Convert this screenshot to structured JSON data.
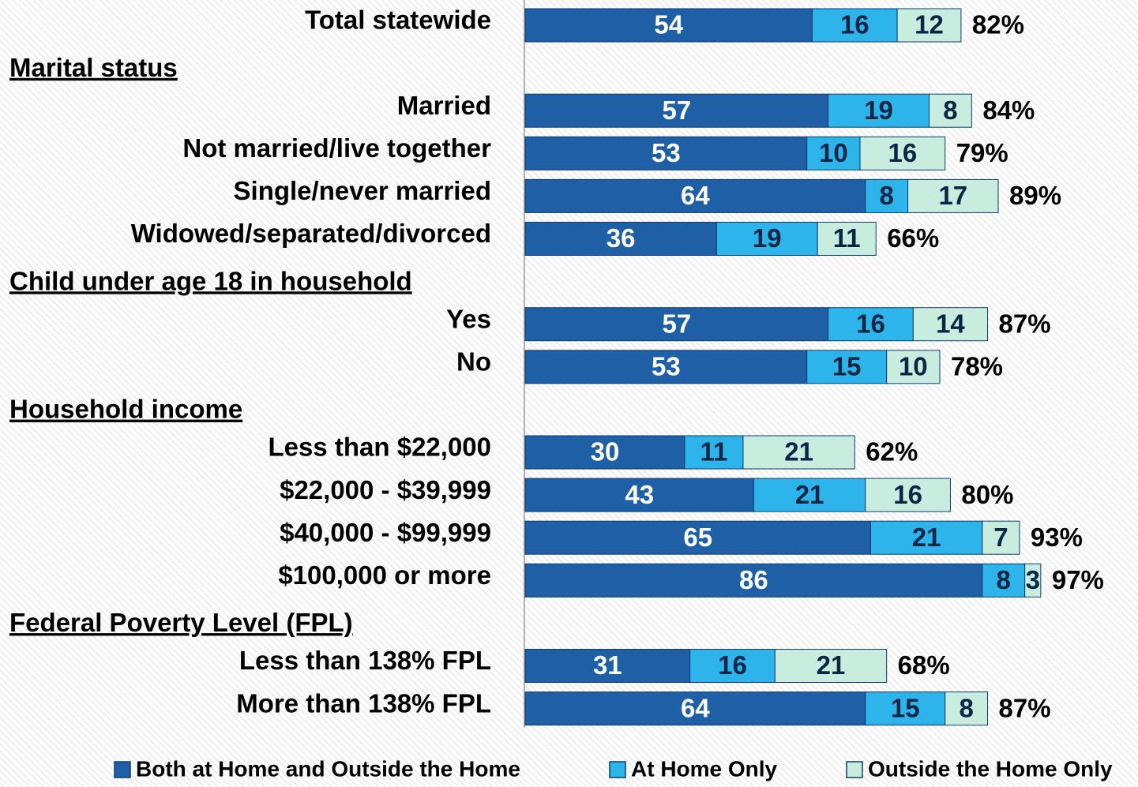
{
  "chart_data": {
    "type": "stacked-bar-horizontal",
    "categories": [
      "Total statewide",
      "Marital status",
      "Married",
      "Not married/live together",
      "Single/never married",
      "Widowed/separated/divorced",
      "Child under age 18 in household",
      "Yes",
      "No",
      "Household income",
      "Less than $22,000",
      "$22,000 - $39,999",
      "$40,000 - $99,999",
      "$100,000 or more",
      "Federal Poverty Level (FPL)",
      "Less than 138% FPL",
      "More than 138% FPL"
    ],
    "series": [
      {
        "name": "Both at Home and Outside the Home",
        "color": "#1f5fa6",
        "values": [
          54,
          null,
          57,
          53,
          64,
          36,
          null,
          57,
          53,
          null,
          30,
          43,
          65,
          86,
          null,
          31,
          64
        ]
      },
      {
        "name": "At Home Only",
        "color": "#2db4ea",
        "values": [
          16,
          null,
          19,
          10,
          8,
          19,
          null,
          16,
          15,
          null,
          11,
          21,
          21,
          8,
          null,
          16,
          15
        ]
      },
      {
        "name": "Outside the Home Only",
        "color": "#c8eddf",
        "values": [
          12,
          null,
          8,
          16,
          17,
          11,
          null,
          14,
          10,
          null,
          21,
          16,
          7,
          3,
          null,
          21,
          8
        ]
      }
    ],
    "totals": {
      "values": [
        82,
        null,
        84,
        79,
        89,
        66,
        null,
        87,
        78,
        null,
        62,
        80,
        93,
        97,
        null,
        68,
        87
      ],
      "value_labels": [
        "82%",
        null,
        "84%",
        "79%",
        "89%",
        "66%",
        null,
        "87%",
        "78%",
        null,
        "62%",
        "80%",
        "93%",
        "97%",
        null,
        "68%",
        "87%"
      ]
    },
    "xlim": [
      0,
      115
    ]
  }
}
